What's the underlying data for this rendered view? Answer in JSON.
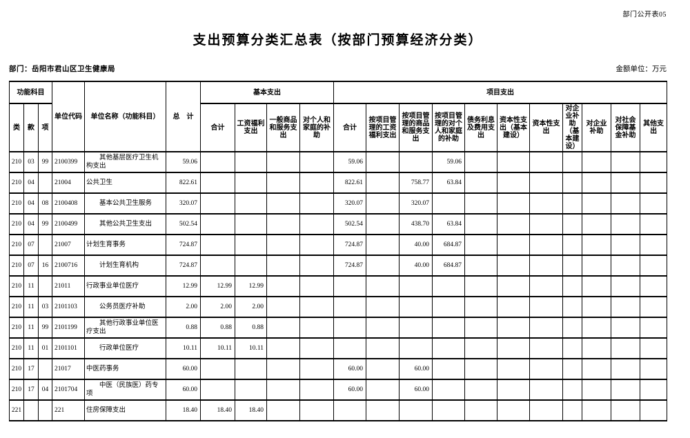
{
  "page": {
    "doc_label": "部门公开表05",
    "title": "支出预算分类汇总表（按部门预算经济分类）",
    "department_label": "部门：岳阳市君山区卫生健康局",
    "unit_label": "金额单位：万元"
  },
  "colors": {
    "background": "#ffffff",
    "text": "#000000",
    "border": "#000000"
  },
  "table": {
    "header": {
      "func_group": "功能科目",
      "col_class": "类",
      "col_section": "款",
      "col_item": "项",
      "unit_code": "单位代码",
      "unit_name": "单位名称（功能科目）",
      "total": "总　计",
      "basic_group": "基本支出",
      "basic_cols": [
        "合计",
        "工资福利支出",
        "一般商品和服务支出",
        "对个人和家庭的补助"
      ],
      "project_group": "项目支出",
      "project_cols": [
        "合计",
        "按项目管理的工资福利支出",
        "按项目管理的商品和服务支出",
        "按项目管理的对个人和家庭的补助",
        "债务利息及费用支出",
        "资本性支出（基本建设）",
        "资本性支出",
        "对企业补助（基本建设）",
        "对企业补助",
        "对社会保障基金补助",
        "其他支出"
      ]
    },
    "rows": [
      {
        "child": true,
        "c": [
          "210",
          "03",
          "99",
          "2100399",
          "其他基层医疗卫生机构支出",
          "59.06",
          "",
          "",
          "",
          "",
          "59.06",
          "",
          "",
          "59.06",
          "",
          "",
          "",
          "",
          "",
          "",
          ""
        ]
      },
      {
        "child": false,
        "c": [
          "210",
          "04",
          "",
          "21004",
          "公共卫生",
          "822.61",
          "",
          "",
          "",
          "",
          "822.61",
          "",
          "758.77",
          "63.84",
          "",
          "",
          "",
          "",
          "",
          "",
          ""
        ]
      },
      {
        "child": true,
        "c": [
          "210",
          "04",
          "08",
          "2100408",
          "基本公共卫生服务",
          "320.07",
          "",
          "",
          "",
          "",
          "320.07",
          "",
          "320.07",
          "",
          "",
          "",
          "",
          "",
          "",
          "",
          ""
        ]
      },
      {
        "child": true,
        "c": [
          "210",
          "04",
          "99",
          "2100499",
          "其他公共卫生支出",
          "502.54",
          "",
          "",
          "",
          "",
          "502.54",
          "",
          "438.70",
          "63.84",
          "",
          "",
          "",
          "",
          "",
          "",
          ""
        ]
      },
      {
        "child": false,
        "c": [
          "210",
          "07",
          "",
          "21007",
          "计划生育事务",
          "724.87",
          "",
          "",
          "",
          "",
          "724.87",
          "",
          "40.00",
          "684.87",
          "",
          "",
          "",
          "",
          "",
          "",
          ""
        ]
      },
      {
        "child": true,
        "c": [
          "210",
          "07",
          "16",
          "2100716",
          "计划生育机构",
          "724.87",
          "",
          "",
          "",
          "",
          "724.87",
          "",
          "40.00",
          "684.87",
          "",
          "",
          "",
          "",
          "",
          "",
          ""
        ]
      },
      {
        "child": false,
        "c": [
          "210",
          "11",
          "",
          "21011",
          "行政事业单位医疗",
          "12.99",
          "12.99",
          "12.99",
          "",
          "",
          "",
          "",
          "",
          "",
          "",
          "",
          "",
          "",
          "",
          "",
          ""
        ]
      },
      {
        "child": true,
        "c": [
          "210",
          "11",
          "03",
          "2101103",
          "公务员医疗补助",
          "2.00",
          "2.00",
          "2.00",
          "",
          "",
          "",
          "",
          "",
          "",
          "",
          "",
          "",
          "",
          "",
          "",
          ""
        ]
      },
      {
        "child": true,
        "c": [
          "210",
          "11",
          "99",
          "2101199",
          "其他行政事业单位医疗支出",
          "0.88",
          "0.88",
          "0.88",
          "",
          "",
          "",
          "",
          "",
          "",
          "",
          "",
          "",
          "",
          "",
          "",
          ""
        ]
      },
      {
        "child": true,
        "c": [
          "210",
          "11",
          "01",
          "2101101",
          "行政单位医疗",
          "10.11",
          "10.11",
          "10.11",
          "",
          "",
          "",
          "",
          "",
          "",
          "",
          "",
          "",
          "",
          "",
          "",
          ""
        ]
      },
      {
        "child": false,
        "c": [
          "210",
          "17",
          "",
          "21017",
          "中医药事务",
          "60.00",
          "",
          "",
          "",
          "",
          "60.00",
          "",
          "60.00",
          "",
          "",
          "",
          "",
          "",
          "",
          "",
          ""
        ]
      },
      {
        "child": true,
        "c": [
          "210",
          "17",
          "04",
          "2101704",
          "中医（民族医）药专项",
          "60.00",
          "",
          "",
          "",
          "",
          "60.00",
          "",
          "60.00",
          "",
          "",
          "",
          "",
          "",
          "",
          "",
          ""
        ]
      },
      {
        "child": false,
        "c": [
          "221",
          "",
          "",
          "221",
          "住房保障支出",
          "18.40",
          "18.40",
          "18.40",
          "",
          "",
          "",
          "",
          "",
          "",
          "",
          "",
          "",
          "",
          "",
          "",
          ""
        ]
      }
    ]
  }
}
